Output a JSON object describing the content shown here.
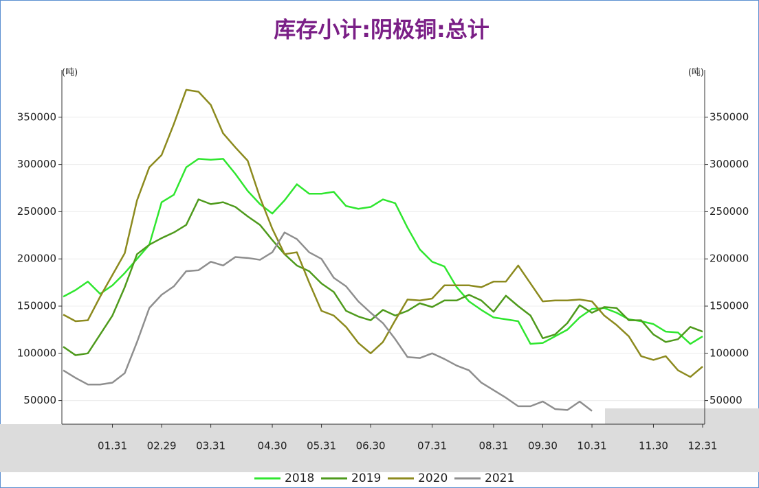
{
  "chart_data": {
    "type": "line",
    "title": "库存小计:阴极铜:总计",
    "y_unit": "(吨)",
    "y2_unit": "(吨)",
    "categories": [
      null,
      null,
      null,
      null,
      "01.31",
      null,
      null,
      null,
      "02.29",
      null,
      null,
      null,
      "03.31",
      null,
      null,
      null,
      null,
      "04.30",
      null,
      null,
      null,
      "05.31",
      null,
      null,
      null,
      "06.30",
      null,
      null,
      null,
      null,
      "07.31",
      null,
      null,
      null,
      null,
      "08.31",
      null,
      null,
      null,
      "09.30",
      null,
      null,
      null,
      "10.31",
      null,
      null,
      null,
      null,
      "11.30",
      null,
      null,
      null,
      "12.31"
    ],
    "series": [
      {
        "name": "2018",
        "color": "#2fe62f",
        "values": [
          160000,
          167000,
          176000,
          163000,
          172000,
          185000,
          200000,
          215000,
          260000,
          268000,
          297000,
          306000,
          305000,
          306000,
          290000,
          272000,
          258000,
          248000,
          262000,
          279000,
          269000,
          269000,
          271000,
          256000,
          253000,
          255000,
          263000,
          259000,
          233000,
          210000,
          197000,
          192000,
          170000,
          155000,
          146000,
          138000,
          136000,
          134000,
          110000,
          111000,
          118000,
          125000,
          138000,
          147000,
          148000,
          143000,
          136000,
          134000,
          131000,
          123000,
          122000,
          110000,
          118000
        ]
      },
      {
        "name": "2019",
        "color": "#4e9a1c",
        "values": [
          107000,
          98000,
          100000,
          120000,
          140000,
          170000,
          205000,
          215000,
          222000,
          228000,
          236000,
          263000,
          258000,
          260000,
          255000,
          245000,
          236000,
          220000,
          205000,
          193000,
          187000,
          174000,
          165000,
          145000,
          139000,
          135000,
          146000,
          140000,
          145000,
          153000,
          149000,
          156000,
          156000,
          162000,
          156000,
          144000,
          161000,
          150000,
          140000,
          116000,
          120000,
          132000,
          151000,
          143000,
          149000,
          148000,
          135000,
          135000,
          120000,
          112000,
          115000,
          128000,
          123000
        ]
      },
      {
        "name": "2020",
        "color": "#8c8a1e",
        "values": [
          141000,
          134000,
          135000,
          160000,
          183000,
          206000,
          262000,
          297000,
          310000,
          343000,
          379000,
          377000,
          363000,
          333000,
          318000,
          304000,
          265000,
          232000,
          205000,
          207000,
          175000,
          145000,
          140000,
          128000,
          111000,
          100000,
          112000,
          135000,
          157000,
          156000,
          158000,
          172000,
          172000,
          172000,
          170000,
          176000,
          176000,
          193000,
          174000,
          155000,
          156000,
          156000,
          157000,
          155000,
          140000,
          130000,
          118000,
          97000,
          93000,
          97000,
          82000,
          75000,
          86000
        ]
      },
      {
        "name": "2021",
        "color": "#8e8e8e",
        "values": [
          82000,
          74000,
          67000,
          67000,
          69000,
          79000,
          112000,
          148000,
          162000,
          171000,
          187000,
          188000,
          197000,
          193000,
          202000,
          201000,
          199000,
          207000,
          228000,
          221000,
          207000,
          200000,
          180000,
          171000,
          155000,
          143000,
          132000,
          115000,
          96000,
          95000,
          100000,
          94000,
          87000,
          82000,
          69000,
          61000,
          53000,
          44000,
          44000,
          49000,
          41000,
          40000,
          49000,
          39000,
          null,
          null,
          null,
          null,
          null,
          null,
          null,
          null,
          null
        ]
      }
    ],
    "ylim": [
      25000,
      400000
    ],
    "yticks": [
      50000,
      100000,
      150000,
      200000,
      250000,
      300000,
      350000
    ],
    "y2lim": [
      25000,
      400000
    ],
    "y2ticks": [
      50000,
      100000,
      150000,
      200000,
      250000,
      300000,
      350000
    ],
    "grid": true
  }
}
